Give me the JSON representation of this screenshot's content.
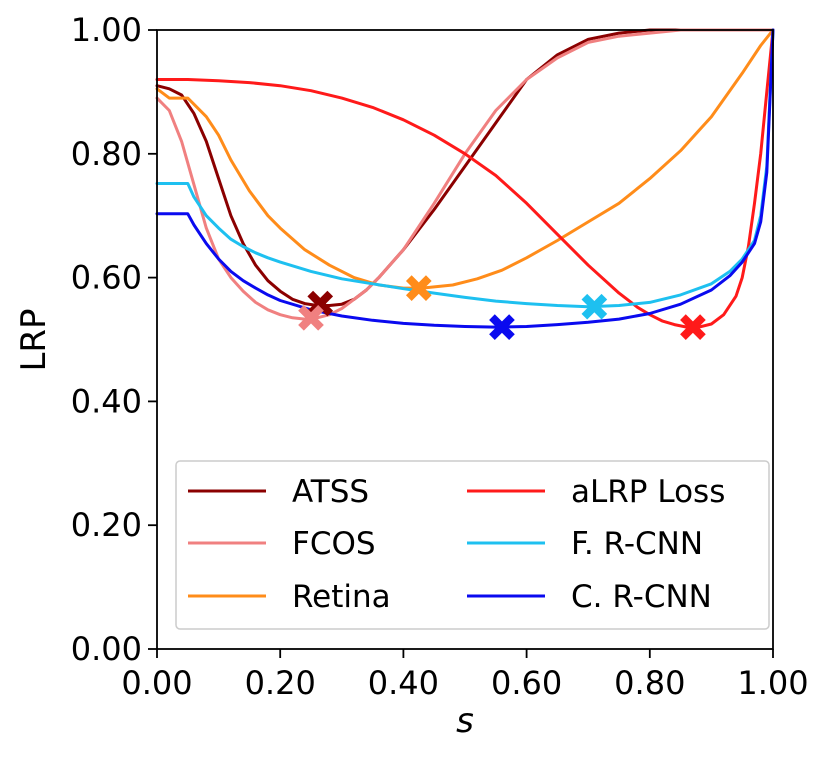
{
  "chart_data": {
    "type": "line",
    "title": "",
    "xlabel": "s",
    "ylabel": "LRP",
    "xlim": [
      0,
      1
    ],
    "ylim": [
      0,
      1
    ],
    "xticks": [
      0,
      0.2,
      0.4,
      0.6,
      0.8,
      1.0
    ],
    "yticks": [
      0,
      0.2,
      0.4,
      0.6,
      0.8,
      1.0
    ],
    "xtick_labels": [
      "0.00",
      "0.20",
      "0.40",
      "0.60",
      "0.80",
      "1.00"
    ],
    "ytick_labels": [
      "0.00",
      "0.20",
      "0.40",
      "0.60",
      "0.80",
      "1.00"
    ],
    "grid": false,
    "legend_position": "lower-center",
    "series": [
      {
        "name": "ATSS",
        "color": "#8b0000",
        "x": [
          0,
          0.02,
          0.04,
          0.06,
          0.08,
          0.1,
          0.12,
          0.14,
          0.16,
          0.18,
          0.2,
          0.22,
          0.24,
          0.26,
          0.28,
          0.3,
          0.32,
          0.34,
          0.36,
          0.4,
          0.45,
          0.5,
          0.55,
          0.6,
          0.65,
          0.7,
          0.75,
          0.8,
          0.85,
          0.9,
          0.95,
          1.0
        ],
        "y": [
          0.91,
          0.905,
          0.895,
          0.865,
          0.82,
          0.76,
          0.7,
          0.655,
          0.62,
          0.595,
          0.578,
          0.565,
          0.558,
          0.555,
          0.555,
          0.557,
          0.565,
          0.58,
          0.6,
          0.645,
          0.71,
          0.78,
          0.85,
          0.92,
          0.96,
          0.985,
          0.995,
          1.0,
          1.0,
          1.0,
          1.0,
          1.0
        ],
        "best": {
          "x": 0.265,
          "y": 0.558
        }
      },
      {
        "name": "FCOS",
        "color": "#f08080",
        "x": [
          0,
          0.02,
          0.04,
          0.06,
          0.08,
          0.1,
          0.12,
          0.14,
          0.16,
          0.18,
          0.2,
          0.22,
          0.24,
          0.26,
          0.28,
          0.3,
          0.32,
          0.34,
          0.36,
          0.4,
          0.45,
          0.5,
          0.55,
          0.6,
          0.65,
          0.7,
          0.75,
          0.8,
          0.85,
          0.9,
          0.95,
          1.0
        ],
        "y": [
          0.89,
          0.87,
          0.82,
          0.75,
          0.68,
          0.63,
          0.6,
          0.578,
          0.56,
          0.548,
          0.54,
          0.535,
          0.533,
          0.535,
          0.54,
          0.55,
          0.565,
          0.58,
          0.6,
          0.645,
          0.72,
          0.8,
          0.87,
          0.92,
          0.955,
          0.98,
          0.99,
          0.995,
          1.0,
          1.0,
          1.0,
          1.0
        ],
        "best": {
          "x": 0.25,
          "y": 0.535
        }
      },
      {
        "name": "Retina",
        "color": "#ff8c1a",
        "x": [
          0,
          0.02,
          0.05,
          0.08,
          0.1,
          0.12,
          0.15,
          0.18,
          0.2,
          0.24,
          0.28,
          0.32,
          0.36,
          0.4,
          0.43,
          0.48,
          0.52,
          0.56,
          0.6,
          0.65,
          0.7,
          0.75,
          0.8,
          0.85,
          0.9,
          0.95,
          0.98,
          1.0
        ],
        "y": [
          0.905,
          0.89,
          0.89,
          0.86,
          0.83,
          0.79,
          0.74,
          0.7,
          0.68,
          0.645,
          0.62,
          0.6,
          0.588,
          0.583,
          0.583,
          0.588,
          0.598,
          0.612,
          0.632,
          0.66,
          0.69,
          0.72,
          0.76,
          0.805,
          0.86,
          0.93,
          0.975,
          1.0
        ],
        "best": {
          "x": 0.425,
          "y": 0.583
        }
      },
      {
        "name": "aLRP Loss",
        "color": "#ff1a1a",
        "x": [
          0,
          0.05,
          0.1,
          0.15,
          0.2,
          0.25,
          0.3,
          0.35,
          0.4,
          0.45,
          0.5,
          0.55,
          0.6,
          0.65,
          0.7,
          0.75,
          0.78,
          0.8,
          0.82,
          0.84,
          0.86,
          0.88,
          0.9,
          0.92,
          0.94,
          0.95,
          0.96,
          0.97,
          0.98,
          0.99,
          1.0
        ],
        "y": [
          0.92,
          0.92,
          0.918,
          0.915,
          0.91,
          0.902,
          0.89,
          0.875,
          0.855,
          0.83,
          0.8,
          0.765,
          0.72,
          0.67,
          0.62,
          0.575,
          0.552,
          0.54,
          0.53,
          0.524,
          0.52,
          0.52,
          0.525,
          0.54,
          0.57,
          0.6,
          0.65,
          0.72,
          0.8,
          0.9,
          1.0
        ],
        "best": {
          "x": 0.87,
          "y": 0.52
        }
      },
      {
        "name": "F. R-CNN",
        "color": "#1ec0f0",
        "x": [
          0,
          0.02,
          0.04,
          0.05,
          0.06,
          0.08,
          0.1,
          0.12,
          0.14,
          0.16,
          0.18,
          0.2,
          0.25,
          0.3,
          0.35,
          0.4,
          0.45,
          0.5,
          0.55,
          0.6,
          0.65,
          0.7,
          0.75,
          0.8,
          0.85,
          0.9,
          0.93,
          0.95,
          0.97,
          0.98,
          0.99,
          1.0
        ],
        "y": [
          0.752,
          0.752,
          0.752,
          0.752,
          0.73,
          0.7,
          0.68,
          0.662,
          0.65,
          0.64,
          0.632,
          0.625,
          0.61,
          0.598,
          0.59,
          0.582,
          0.575,
          0.568,
          0.562,
          0.558,
          0.555,
          0.553,
          0.555,
          0.56,
          0.572,
          0.59,
          0.61,
          0.63,
          0.66,
          0.7,
          0.78,
          1.0
        ],
        "best": {
          "x": 0.71,
          "y": 0.553
        }
      },
      {
        "name": "C. R-CNN",
        "color": "#0a0aef",
        "x": [
          0,
          0.02,
          0.04,
          0.05,
          0.06,
          0.08,
          0.1,
          0.12,
          0.14,
          0.16,
          0.18,
          0.2,
          0.25,
          0.3,
          0.35,
          0.4,
          0.45,
          0.5,
          0.55,
          0.6,
          0.65,
          0.7,
          0.75,
          0.8,
          0.85,
          0.9,
          0.93,
          0.95,
          0.97,
          0.98,
          0.99,
          1.0
        ],
        "y": [
          0.703,
          0.703,
          0.703,
          0.703,
          0.685,
          0.655,
          0.63,
          0.61,
          0.595,
          0.583,
          0.572,
          0.563,
          0.548,
          0.538,
          0.531,
          0.526,
          0.523,
          0.521,
          0.52,
          0.521,
          0.524,
          0.528,
          0.533,
          0.542,
          0.557,
          0.58,
          0.603,
          0.625,
          0.655,
          0.69,
          0.77,
          1.0
        ],
        "best": {
          "x": 0.56,
          "y": 0.52
        }
      }
    ]
  }
}
